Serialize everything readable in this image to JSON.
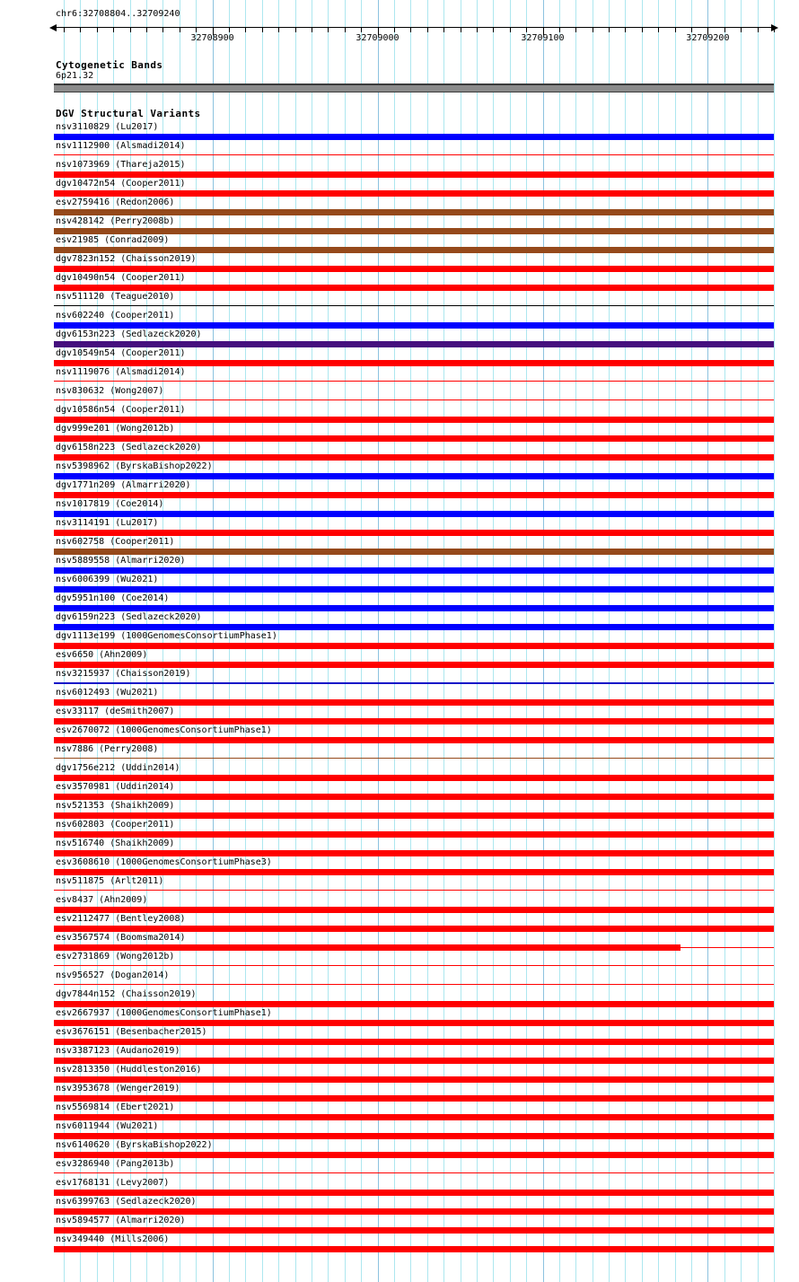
{
  "header": {
    "region": "chr6:32708804..32709240"
  },
  "cytogenetic": {
    "title": "Cytogenetic Bands",
    "band": "6p21.32",
    "band_color": "#8b8b8b"
  },
  "variants": {
    "title": "DGV Structural Variants"
  },
  "colors": {
    "minor_gridline": "#ade7ef",
    "major_gridline": "#8cc2df",
    "ruler": "#000000",
    "gain_blue": "#0000ff",
    "loss_red": "#ff0000",
    "brown": "#95491b",
    "purple": "#45107e",
    "dark_blue_line": "#1414c8",
    "black_line": "#000000"
  },
  "chart_data": {
    "type": "table",
    "title": "DGV Structural Variants",
    "region": {
      "chromosome": "chr6",
      "start": 32708804,
      "end": 32709240
    },
    "axis": {
      "major_ticks": [
        {
          "bp": 32708900,
          "label": "32708900"
        },
        {
          "bp": 32709000,
          "label": "32709000"
        },
        {
          "bp": 32709100,
          "label": "32709100"
        },
        {
          "bp": 32709200,
          "label": "32709200"
        }
      ],
      "minor_tick_interval_bp": 10,
      "grid": true
    },
    "rows": [
      {
        "label": "nsv3110829 (Lu2017)",
        "color": "#0000ff",
        "h": 7,
        "end_frac": 1,
        "tail": false
      },
      {
        "label": "nsv1112900 (Alsmadi2014)",
        "color": "#ff0000",
        "h": 1,
        "end_frac": 1,
        "tail": false
      },
      {
        "label": "nsv1073969 (Thareja2015)",
        "color": "#ff0000",
        "h": 7,
        "end_frac": 1,
        "tail": false
      },
      {
        "label": "dgv10472n54 (Cooper2011)",
        "color": "#ff0000",
        "h": 7,
        "end_frac": 1,
        "tail": false
      },
      {
        "label": "esv2759416 (Redon2006)",
        "color": "#95491b",
        "h": 7,
        "end_frac": 1,
        "tail": false
      },
      {
        "label": "nsv428142 (Perry2008b)",
        "color": "#95491b",
        "h": 7,
        "end_frac": 1,
        "tail": false
      },
      {
        "label": "esv21985 (Conrad2009)",
        "color": "#95491b",
        "h": 7,
        "end_frac": 1,
        "tail": false
      },
      {
        "label": "dgv7823n152 (Chaisson2019)",
        "color": "#ff0000",
        "h": 7,
        "end_frac": 1,
        "tail": false
      },
      {
        "label": "dgv10490n54 (Cooper2011)",
        "color": "#ff0000",
        "h": 7,
        "end_frac": 1,
        "tail": false
      },
      {
        "label": "nsv511120 (Teague2010)",
        "color": "#000000",
        "h": 1,
        "end_frac": 1,
        "tail": false
      },
      {
        "label": "nsv602240 (Cooper2011)",
        "color": "#0000ff",
        "h": 7,
        "end_frac": 1,
        "tail": false
      },
      {
        "label": "dgv6153n223 (Sedlazeck2020)",
        "color": "#45107e",
        "h": 7,
        "end_frac": 1,
        "tail": false
      },
      {
        "label": "dgv10549n54 (Cooper2011)",
        "color": "#ff0000",
        "h": 7,
        "end_frac": 1,
        "tail": false
      },
      {
        "label": "nsv1119076 (Alsmadi2014)",
        "color": "#ff0000",
        "h": 1,
        "end_frac": 1,
        "tail": false
      },
      {
        "label": "nsv830632 (Wong2007)",
        "color": "#ff0000",
        "h": 1,
        "end_frac": 1,
        "tail": false
      },
      {
        "label": "dgv10586n54 (Cooper2011)",
        "color": "#ff0000",
        "h": 7,
        "end_frac": 1,
        "tail": false
      },
      {
        "label": "dgv999e201 (Wong2012b)",
        "color": "#ff0000",
        "h": 7,
        "end_frac": 1,
        "tail": false
      },
      {
        "label": "dgv6158n223 (Sedlazeck2020)",
        "color": "#ff0000",
        "h": 7,
        "end_frac": 1,
        "tail": false
      },
      {
        "label": "nsv5398962 (ByrskaBishop2022)",
        "color": "#0000ff",
        "h": 7,
        "end_frac": 1,
        "tail": false
      },
      {
        "label": "dgv1771n209 (Almarri2020)",
        "color": "#ff0000",
        "h": 7,
        "end_frac": 1,
        "tail": false
      },
      {
        "label": "nsv1017819 (Coe2014)",
        "color": "#0000ff",
        "h": 7,
        "end_frac": 1,
        "tail": false
      },
      {
        "label": "nsv3114191 (Lu2017)",
        "color": "#ff0000",
        "h": 7,
        "end_frac": 1,
        "tail": false
      },
      {
        "label": "nsv602758 (Cooper2011)",
        "color": "#95491b",
        "h": 7,
        "end_frac": 1,
        "tail": false
      },
      {
        "label": "nsv5889558 (Almarri2020)",
        "color": "#0000ff",
        "h": 7,
        "end_frac": 1,
        "tail": false
      },
      {
        "label": "nsv6006399 (Wu2021)",
        "color": "#0000ff",
        "h": 7,
        "end_frac": 1,
        "tail": false
      },
      {
        "label": "dgv5951n100 (Coe2014)",
        "color": "#0000ff",
        "h": 7,
        "end_frac": 1,
        "tail": false
      },
      {
        "label": "dgv6159n223 (Sedlazeck2020)",
        "color": "#0000ff",
        "h": 7,
        "end_frac": 1,
        "tail": false
      },
      {
        "label": "dgv1113e199 (1000GenomesConsortiumPhase1)",
        "color": "#ff0000",
        "h": 7,
        "end_frac": 1,
        "tail": false
      },
      {
        "label": "esv6650 (Ahn2009)",
        "color": "#ff0000",
        "h": 7,
        "end_frac": 1,
        "tail": false
      },
      {
        "label": "nsv3215937 (Chaisson2019)",
        "color": "#1414c8",
        "h": 2,
        "end_frac": 1,
        "tail": false
      },
      {
        "label": "nsv6012493 (Wu2021)",
        "color": "#ff0000",
        "h": 7,
        "end_frac": 1,
        "tail": false
      },
      {
        "label": "esv33117 (deSmith2007)",
        "color": "#ff0000",
        "h": 7,
        "end_frac": 1,
        "tail": false
      },
      {
        "label": "esv2670072 (1000GenomesConsortiumPhase1)",
        "color": "#ff0000",
        "h": 7,
        "end_frac": 1,
        "tail": false
      },
      {
        "label": "nsv7886 (Perry2008)",
        "color": "#95491b",
        "h": 1,
        "end_frac": 1,
        "tail": false
      },
      {
        "label": "dgv1756e212 (Uddin2014)",
        "color": "#ff0000",
        "h": 7,
        "end_frac": 1,
        "tail": false
      },
      {
        "label": "esv3570981 (Uddin2014)",
        "color": "#ff0000",
        "h": 7,
        "end_frac": 1,
        "tail": false
      },
      {
        "label": "nsv521353 (Shaikh2009)",
        "color": "#ff0000",
        "h": 7,
        "end_frac": 1,
        "tail": false
      },
      {
        "label": "nsv602803 (Cooper2011)",
        "color": "#ff0000",
        "h": 7,
        "end_frac": 1,
        "tail": false
      },
      {
        "label": "nsv516740 (Shaikh2009)",
        "color": "#ff0000",
        "h": 7,
        "end_frac": 1,
        "tail": false
      },
      {
        "label": "esv3608610 (1000GenomesConsortiumPhase3)",
        "color": "#ff0000",
        "h": 7,
        "end_frac": 1,
        "tail": false
      },
      {
        "label": "nsv511875 (Arlt2011)",
        "color": "#ff0000",
        "h": 1,
        "end_frac": 1,
        "tail": false
      },
      {
        "label": "esv8437 (Ahn2009)",
        "color": "#ff0000",
        "h": 7,
        "end_frac": 1,
        "tail": false
      },
      {
        "label": "esv2112477 (Bentley2008)",
        "color": "#ff0000",
        "h": 7,
        "end_frac": 1,
        "tail": false
      },
      {
        "label": "esv3567574 (Boomsma2014)",
        "color": "#ff0000",
        "h": 7,
        "end_frac": 0.87,
        "tail": true
      },
      {
        "label": "esv2731869 (Wong2012b)",
        "color": "#ff0000",
        "h": 1,
        "end_frac": 1,
        "tail": false
      },
      {
        "label": "nsv956527 (Dogan2014)",
        "color": "#ff0000",
        "h": 1,
        "end_frac": 1,
        "tail": false
      },
      {
        "label": "dgv7844n152 (Chaisson2019)",
        "color": "#ff0000",
        "h": 7,
        "end_frac": 1,
        "tail": false
      },
      {
        "label": "esv2667937 (1000GenomesConsortiumPhase1)",
        "color": "#ff0000",
        "h": 7,
        "end_frac": 1,
        "tail": false
      },
      {
        "label": "esv3676151 (Besenbacher2015)",
        "color": "#ff0000",
        "h": 7,
        "end_frac": 1,
        "tail": false
      },
      {
        "label": "nsv3387123 (Audano2019)",
        "color": "#ff0000",
        "h": 7,
        "end_frac": 1,
        "tail": false
      },
      {
        "label": "nsv2813350 (Huddleston2016)",
        "color": "#ff0000",
        "h": 7,
        "end_frac": 1,
        "tail": false
      },
      {
        "label": "nsv3953678 (Wenger2019)",
        "color": "#ff0000",
        "h": 7,
        "end_frac": 1,
        "tail": false
      },
      {
        "label": "nsv5569814 (Ebert2021)",
        "color": "#ff0000",
        "h": 7,
        "end_frac": 1,
        "tail": false
      },
      {
        "label": "nsv6011944 (Wu2021)",
        "color": "#ff0000",
        "h": 7,
        "end_frac": 1,
        "tail": false
      },
      {
        "label": "nsv6140620 (ByrskaBishop2022)",
        "color": "#ff0000",
        "h": 7,
        "end_frac": 1,
        "tail": false
      },
      {
        "label": "esv3286940 (Pang2013b)",
        "color": "#ff0000",
        "h": 1,
        "end_frac": 1,
        "tail": false
      },
      {
        "label": "esv1768131 (Levy2007)",
        "color": "#ff0000",
        "h": 7,
        "end_frac": 1,
        "tail": false
      },
      {
        "label": "nsv6399763 (Sedlazeck2020)",
        "color": "#ff0000",
        "h": 7,
        "end_frac": 1,
        "tail": false
      },
      {
        "label": "nsv5894577 (Almarri2020)",
        "color": "#ff0000",
        "h": 7,
        "end_frac": 1,
        "tail": false
      },
      {
        "label": "nsv349440 (Mills2006)",
        "color": "#ff0000",
        "h": 7,
        "end_frac": 1,
        "tail": false
      }
    ]
  }
}
